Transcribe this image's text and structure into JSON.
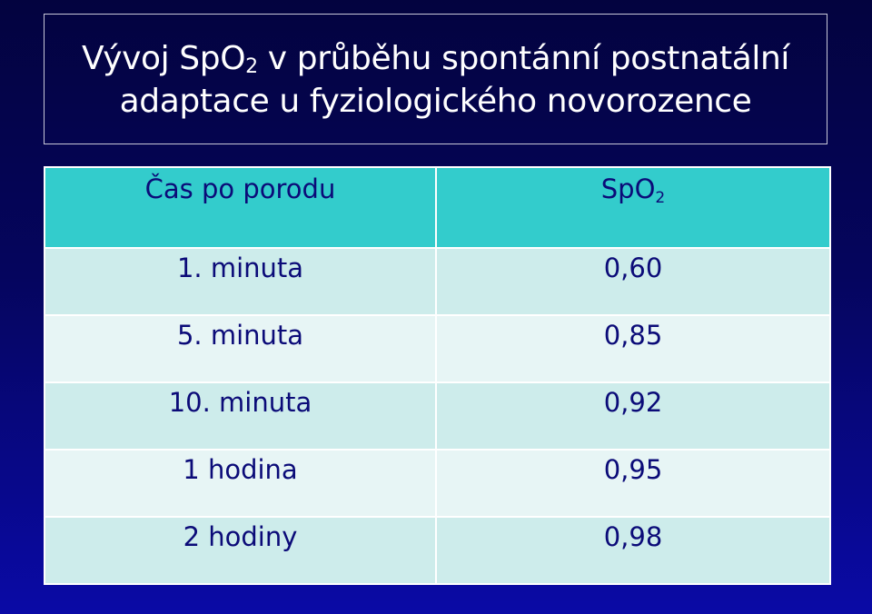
{
  "title": {
    "line1_before": "Vývoj SpO",
    "line1_sub": "2",
    "line1_after": " v průběhu spontánní postnatální",
    "line2": "adaptace u fyziologického novorozence"
  },
  "table": {
    "headers": {
      "time": "Čas po porodu",
      "spo2_text": "SpO",
      "spo2_sub": "2"
    },
    "rows": [
      {
        "time": "1. minuta",
        "value": "0,60"
      },
      {
        "time": "5. minuta",
        "value": "0,85"
      },
      {
        "time": "10. minuta",
        "value": "0,92"
      },
      {
        "time": "1 hodina",
        "value": "0,95"
      },
      {
        "time": "2 hodiny",
        "value": "0,98"
      }
    ]
  }
}
